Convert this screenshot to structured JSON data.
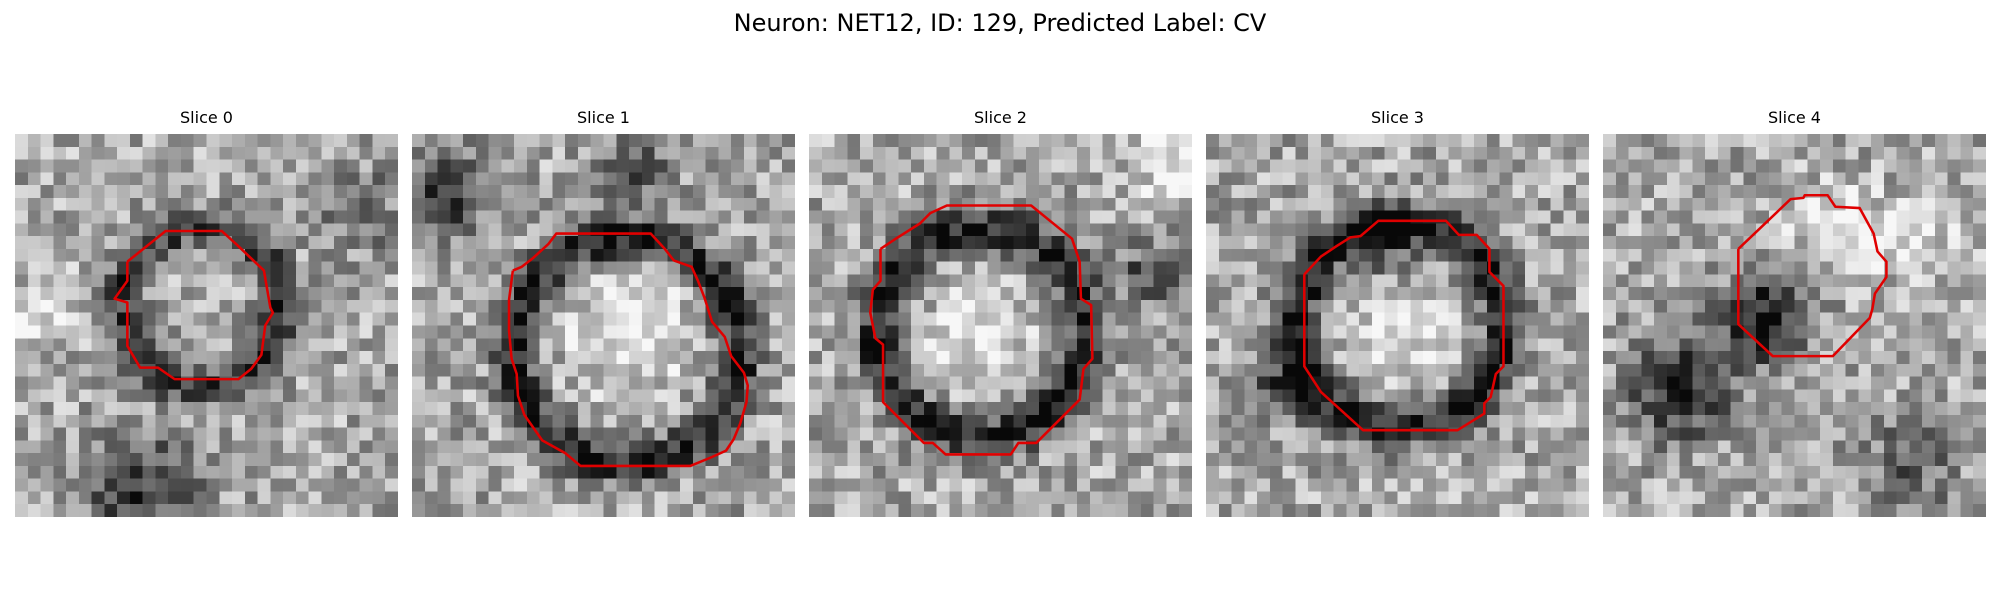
{
  "figure": {
    "title": "Neuron: NET12, ID: 129, Predicted Label: CV"
  },
  "panels": [
    {
      "title": "Slice 0"
    },
    {
      "title": "Slice 1"
    },
    {
      "title": "Slice 2"
    },
    {
      "title": "Slice 3"
    },
    {
      "title": "Slice 4"
    }
  ],
  "colors": {
    "background": "#ffffff",
    "outline": "#e00000",
    "colormap": "grayscale"
  }
}
